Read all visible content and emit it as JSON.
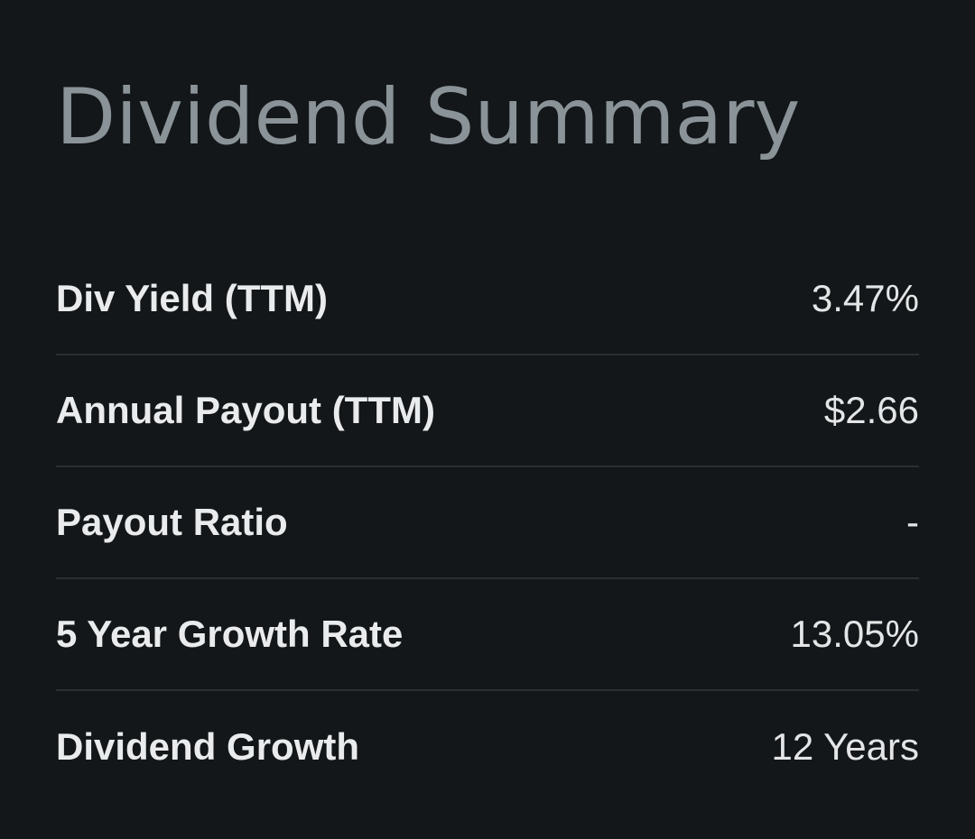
{
  "header": {
    "title": "Dividend Summary"
  },
  "rows": [
    {
      "label": "Div Yield (TTM)",
      "value": "3.47%"
    },
    {
      "label": "Annual Payout (TTM)",
      "value": "$2.66"
    },
    {
      "label": "Payout Ratio",
      "value": "-"
    },
    {
      "label": "5 Year Growth Rate",
      "value": "13.05%"
    },
    {
      "label": "Dividend Growth",
      "value": "12 Years"
    }
  ],
  "colors": {
    "background": "#141719",
    "title": "#8a9398",
    "label": "#e9ebec",
    "value": "#e3e5e6",
    "divider": "#2b2f32"
  }
}
